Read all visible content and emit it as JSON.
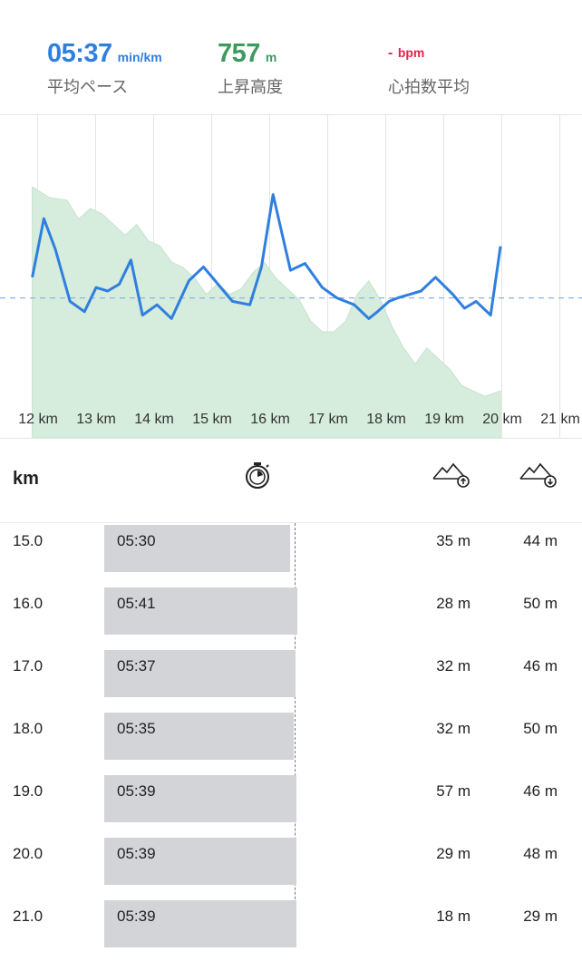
{
  "summary": {
    "pace": {
      "value": "05:37",
      "unit": "min/km",
      "label": "平均ペース",
      "color": "#2f7fdf"
    },
    "elevation": {
      "value": "757",
      "unit": "m",
      "label": "上昇高度",
      "color": "#3f9a5f"
    },
    "heart_rate": {
      "value": "-",
      "unit": "bpm",
      "label": "心拍数平均",
      "color": "#e3244a"
    }
  },
  "chart_data": {
    "type": "line",
    "x_tick_labels": [
      "12 km",
      "13 km",
      "14 km",
      "15 km",
      "16 km",
      "17 km",
      "18 km",
      "19 km",
      "20 km",
      "21 km"
    ],
    "x_ticks": [
      12,
      13,
      14,
      15,
      16,
      17,
      18,
      19,
      20,
      21
    ],
    "pace_series": {
      "color": "#2f7fdf",
      "points": [
        [
          11.9,
          5.5
        ],
        [
          12.1,
          5.33
        ],
        [
          12.3,
          5.42
        ],
        [
          12.55,
          5.57
        ],
        [
          12.8,
          5.6
        ],
        [
          13.0,
          5.53
        ],
        [
          13.2,
          5.54
        ],
        [
          13.4,
          5.52
        ],
        [
          13.6,
          5.45
        ],
        [
          13.8,
          5.61
        ],
        [
          14.05,
          5.58
        ],
        [
          14.3,
          5.62
        ],
        [
          14.6,
          5.51
        ],
        [
          14.85,
          5.47
        ],
        [
          15.1,
          5.52
        ],
        [
          15.35,
          5.57
        ],
        [
          15.65,
          5.58
        ],
        [
          15.85,
          5.47
        ],
        [
          16.05,
          5.26
        ],
        [
          16.35,
          5.48
        ],
        [
          16.6,
          5.46
        ],
        [
          16.9,
          5.53
        ],
        [
          17.15,
          5.56
        ],
        [
          17.45,
          5.58
        ],
        [
          17.7,
          5.62
        ],
        [
          17.85,
          5.6
        ],
        [
          18.05,
          5.57
        ],
        [
          18.2,
          5.56
        ],
        [
          18.4,
          5.55
        ],
        [
          18.6,
          5.54
        ],
        [
          18.85,
          5.5
        ],
        [
          19.15,
          5.55
        ],
        [
          19.35,
          5.59
        ],
        [
          19.55,
          5.57
        ],
        [
          19.8,
          5.61
        ],
        [
          19.97,
          5.41
        ]
      ],
      "average": 5.56
    },
    "elevation_series": {
      "color": "#d6ecdc",
      "description_ok": false,
      "points": [
        [
          11.9,
          0.8
        ],
        [
          12.2,
          0.76
        ],
        [
          12.5,
          0.75
        ],
        [
          12.7,
          0.68
        ],
        [
          12.9,
          0.72
        ],
        [
          13.1,
          0.7
        ],
        [
          13.3,
          0.66
        ],
        [
          13.5,
          0.62
        ],
        [
          13.7,
          0.66
        ],
        [
          13.9,
          0.6
        ],
        [
          14.1,
          0.58
        ],
        [
          14.3,
          0.52
        ],
        [
          14.5,
          0.5
        ],
        [
          14.7,
          0.46
        ],
        [
          14.9,
          0.4
        ],
        [
          15.1,
          0.44
        ],
        [
          15.3,
          0.4
        ],
        [
          15.5,
          0.42
        ],
        [
          15.7,
          0.48
        ],
        [
          15.9,
          0.52
        ],
        [
          16.1,
          0.46
        ],
        [
          16.3,
          0.42
        ],
        [
          16.5,
          0.38
        ],
        [
          16.7,
          0.3
        ],
        [
          16.9,
          0.26
        ],
        [
          17.1,
          0.26
        ],
        [
          17.3,
          0.3
        ],
        [
          17.5,
          0.4
        ],
        [
          17.7,
          0.45
        ],
        [
          17.9,
          0.38
        ],
        [
          18.1,
          0.28
        ],
        [
          18.3,
          0.2
        ],
        [
          18.5,
          0.14
        ],
        [
          18.7,
          0.2
        ],
        [
          18.9,
          0.16
        ],
        [
          19.1,
          0.12
        ],
        [
          19.3,
          0.06
        ],
        [
          19.5,
          0.04
        ],
        [
          19.7,
          0.02
        ],
        [
          19.97,
          0.04
        ]
      ]
    }
  },
  "table": {
    "header_km": "km",
    "icons": {
      "pace": "stopwatch-icon",
      "ascent": "mountain-up-icon",
      "descent": "mountain-down-icon"
    },
    "average_pace_fraction": 0.325,
    "rows": [
      {
        "km": "15.0",
        "pace": "05:30",
        "pace_fraction": 0.32,
        "up": "35 m",
        "down": "44 m"
      },
      {
        "km": "16.0",
        "pace": "05:41",
        "pace_fraction": 0.332,
        "up": "28 m",
        "down": "50 m"
      },
      {
        "km": "17.0",
        "pace": "05:37",
        "pace_fraction": 0.329,
        "up": "32 m",
        "down": "46 m"
      },
      {
        "km": "18.0",
        "pace": "05:35",
        "pace_fraction": 0.326,
        "up": "32 m",
        "down": "50 m"
      },
      {
        "km": "19.0",
        "pace": "05:39",
        "pace_fraction": 0.33,
        "up": "57 m",
        "down": "46 m"
      },
      {
        "km": "20.0",
        "pace": "05:39",
        "pace_fraction": 0.33,
        "up": "29 m",
        "down": "48 m"
      },
      {
        "km": "21.0",
        "pace": "05:39",
        "pace_fraction": 0.33,
        "up": "18 m",
        "down": "29 m"
      }
    ]
  }
}
